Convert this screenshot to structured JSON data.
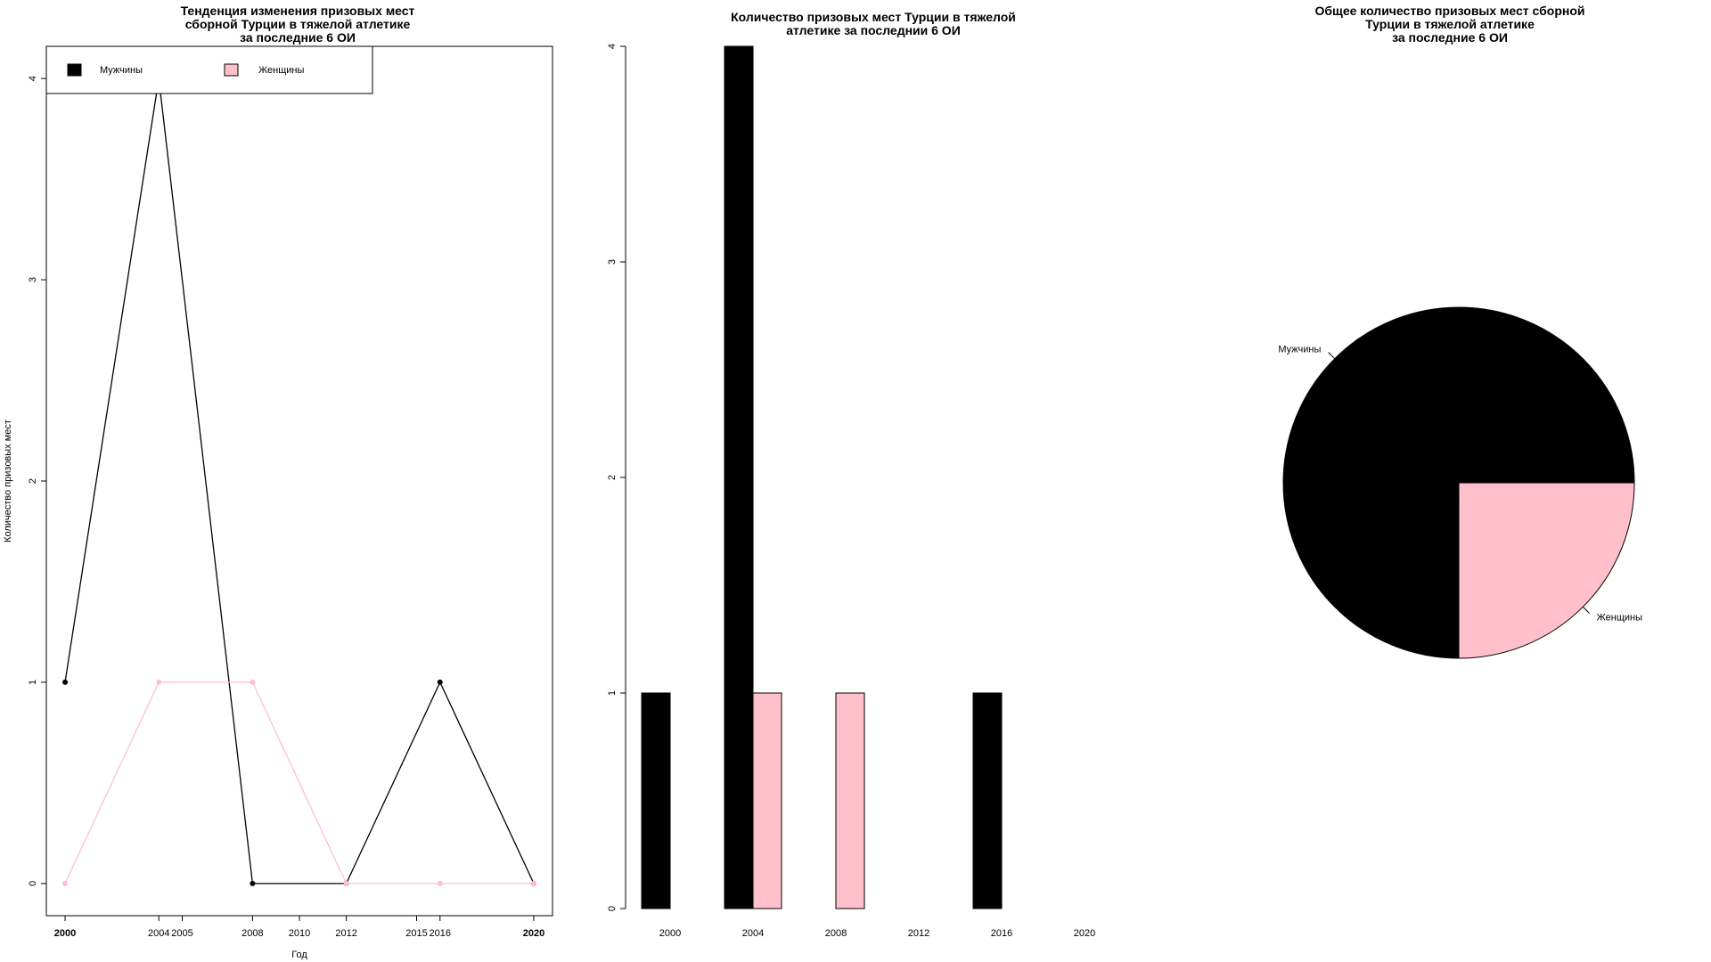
{
  "chart_data": [
    {
      "type": "line",
      "title_lines": [
        "Тенденция изменения призовых мест",
        "сборной Турции в тяжелой атлетике",
        "за последние 6 ОИ"
      ],
      "xlabel": "Год",
      "ylabel": "Количество призовых мест",
      "x": [
        2000,
        2004,
        2008,
        2012,
        2016,
        2020
      ],
      "x_ticks_bold": [
        "2000",
        "2020"
      ],
      "x_ticks": [
        "2004",
        "2005",
        "2008",
        "2010",
        "2012",
        "2015",
        "2016"
      ],
      "x_tick_values": [
        2004,
        2005,
        2008,
        2010,
        2012,
        2015,
        2016
      ],
      "xlim": [
        1999.2,
        2020.8
      ],
      "y_ticks": [
        "0",
        "1",
        "2",
        "3",
        "4"
      ],
      "ylim": [
        -0.16,
        4.16
      ],
      "series": [
        {
          "name": "Мужчины",
          "values": [
            1,
            4,
            0,
            0,
            1,
            0
          ],
          "color": "#000000"
        },
        {
          "name": "Женщины",
          "values": [
            0,
            1,
            1,
            0,
            0,
            0
          ],
          "color": "#FFC0CB"
        }
      ],
      "legend_position": "top-left"
    },
    {
      "type": "bar",
      "title_lines": [
        "Количество призовых мест Турции в тяжелой",
        "атлетике за последнии 6 ОИ"
      ],
      "categories": [
        "2000",
        "2004",
        "2008",
        "2012",
        "2016",
        "2020"
      ],
      "series": [
        {
          "values": [
            1,
            4,
            0,
            0,
            1,
            0
          ],
          "color": "#000000"
        },
        {
          "values": [
            0,
            1,
            1,
            0,
            0,
            0
          ],
          "color": "#FFC0CB"
        }
      ],
      "y_ticks": [
        "0",
        "1",
        "2",
        "3",
        "4"
      ],
      "ylim": [
        0,
        4
      ]
    },
    {
      "type": "pie",
      "title_lines": [
        "Общее количество призовых мест сборной",
        "Турции в тяжелой атлетике",
        "за последние 6 ОИ"
      ],
      "slices": [
        {
          "label": "Мужчины",
          "value": 6,
          "color": "#000000"
        },
        {
          "label": "Женщины",
          "value": 2,
          "color": "#FFC0CB"
        }
      ]
    }
  ]
}
